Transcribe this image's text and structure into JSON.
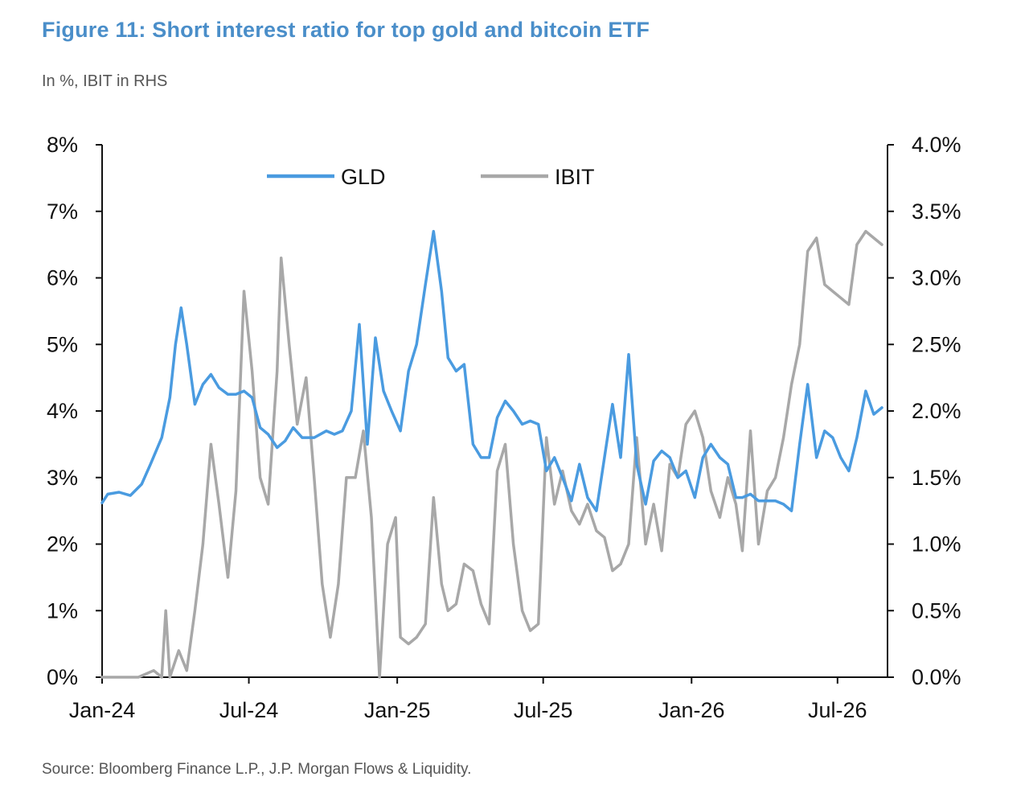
{
  "title": "Figure 11: Short interest ratio for top gold and bitcoin ETF",
  "subtitle": "In %, IBIT in RHS",
  "source": "Source: Bloomberg Finance L.P., J.P. Morgan Flows & Liquidity.",
  "chart_data": {
    "type": "line",
    "x_tick_labels": [
      "Jan-24",
      "Jul-24",
      "Jan-25",
      "Jul-25",
      "Jan-26",
      "Jul-26"
    ],
    "x_tick_dates": [
      "2024-01",
      "2024-07",
      "2025-01",
      "2025-07",
      "2026-01",
      "2026-07"
    ],
    "xlim": [
      "2024-01",
      "2026-09"
    ],
    "ylim_left": [
      0,
      8
    ],
    "ylim_right": [
      0,
      4
    ],
    "y_left_tick_labels": [
      "0%",
      "1%",
      "2%",
      "3%",
      "4%",
      "5%",
      "6%",
      "7%",
      "8%"
    ],
    "y_right_tick_labels": [
      "0.0%",
      "0.5%",
      "1.0%",
      "1.5%",
      "2.0%",
      "2.5%",
      "3.0%",
      "3.5%",
      "4.0%"
    ],
    "legend_placement": "top-center",
    "grid": false,
    "series": [
      {
        "name": "GLD",
        "axis": "left",
        "color": "#4a9be0",
        "points": [
          [
            "2024-01-01",
            2.62
          ],
          [
            "2024-01-08",
            2.75
          ],
          [
            "2024-01-22",
            2.78
          ],
          [
            "2024-02-05",
            2.73
          ],
          [
            "2024-02-19",
            2.9
          ],
          [
            "2024-03-01",
            3.2
          ],
          [
            "2024-03-15",
            3.6
          ],
          [
            "2024-03-25",
            4.2
          ],
          [
            "2024-04-01",
            5.0
          ],
          [
            "2024-04-08",
            5.55
          ],
          [
            "2024-04-15",
            5.0
          ],
          [
            "2024-04-25",
            4.1
          ],
          [
            "2024-05-05",
            4.4
          ],
          [
            "2024-05-15",
            4.55
          ],
          [
            "2024-05-25",
            4.35
          ],
          [
            "2024-06-05",
            4.25
          ],
          [
            "2024-06-15",
            4.25
          ],
          [
            "2024-06-25",
            4.3
          ],
          [
            "2024-07-05",
            4.2
          ],
          [
            "2024-07-15",
            3.75
          ],
          [
            "2024-07-25",
            3.65
          ],
          [
            "2024-08-05",
            3.45
          ],
          [
            "2024-08-15",
            3.55
          ],
          [
            "2024-08-25",
            3.75
          ],
          [
            "2024-09-05",
            3.6
          ],
          [
            "2024-09-20",
            3.6
          ],
          [
            "2024-10-05",
            3.7
          ],
          [
            "2024-10-15",
            3.65
          ],
          [
            "2024-10-25",
            3.7
          ],
          [
            "2024-11-05",
            4.0
          ],
          [
            "2024-11-15",
            5.3
          ],
          [
            "2024-11-25",
            3.5
          ],
          [
            "2024-12-05",
            5.1
          ],
          [
            "2024-12-15",
            4.3
          ],
          [
            "2024-12-25",
            4.0
          ],
          [
            "2025-01-05",
            3.7
          ],
          [
            "2025-01-15",
            4.6
          ],
          [
            "2025-01-25",
            5.0
          ],
          [
            "2025-02-05",
            5.9
          ],
          [
            "2025-02-15",
            6.7
          ],
          [
            "2025-02-25",
            5.8
          ],
          [
            "2025-03-05",
            4.8
          ],
          [
            "2025-03-15",
            4.6
          ],
          [
            "2025-03-25",
            4.7
          ],
          [
            "2025-04-05",
            3.5
          ],
          [
            "2025-04-15",
            3.3
          ],
          [
            "2025-04-25",
            3.3
          ],
          [
            "2025-05-05",
            3.9
          ],
          [
            "2025-05-15",
            4.15
          ],
          [
            "2025-05-25",
            4.0
          ],
          [
            "2025-06-05",
            3.8
          ],
          [
            "2025-06-15",
            3.85
          ],
          [
            "2025-06-25",
            3.8
          ],
          [
            "2025-07-05",
            3.1
          ],
          [
            "2025-07-15",
            3.3
          ],
          [
            "2025-07-25",
            3.0
          ],
          [
            "2025-08-05",
            2.65
          ],
          [
            "2025-08-15",
            3.2
          ],
          [
            "2025-08-25",
            2.7
          ],
          [
            "2025-09-05",
            2.5
          ],
          [
            "2025-09-15",
            3.3
          ],
          [
            "2025-09-25",
            4.1
          ],
          [
            "2025-10-05",
            3.3
          ],
          [
            "2025-10-15",
            4.85
          ],
          [
            "2025-10-25",
            3.2
          ],
          [
            "2025-11-05",
            2.6
          ],
          [
            "2025-11-15",
            3.25
          ],
          [
            "2025-11-25",
            3.4
          ],
          [
            "2025-12-05",
            3.3
          ],
          [
            "2025-12-15",
            3.0
          ],
          [
            "2025-12-25",
            3.1
          ],
          [
            "2026-01-05",
            2.7
          ],
          [
            "2026-01-15",
            3.3
          ],
          [
            "2026-01-25",
            3.5
          ],
          [
            "2026-02-05",
            3.3
          ],
          [
            "2026-02-15",
            3.2
          ],
          [
            "2026-02-25",
            2.7
          ],
          [
            "2026-03-05",
            2.7
          ],
          [
            "2026-03-15",
            2.75
          ],
          [
            "2026-03-25",
            2.65
          ],
          [
            "2026-04-05",
            2.65
          ],
          [
            "2026-04-15",
            2.65
          ],
          [
            "2026-04-25",
            2.6
          ],
          [
            "2026-05-05",
            2.5
          ],
          [
            "2026-05-15",
            3.5
          ],
          [
            "2026-05-25",
            4.4
          ],
          [
            "2026-06-05",
            3.3
          ],
          [
            "2026-06-15",
            3.7
          ],
          [
            "2026-06-25",
            3.6
          ],
          [
            "2026-07-05",
            3.3
          ],
          [
            "2026-07-15",
            3.1
          ],
          [
            "2026-07-25",
            3.6
          ],
          [
            "2026-08-05",
            4.3
          ],
          [
            "2026-08-15",
            3.95
          ],
          [
            "2026-08-25",
            4.05
          ]
        ]
      },
      {
        "name": "IBIT",
        "axis": "right",
        "color": "#a8a8a8",
        "points": [
          [
            "2024-01-01",
            0.0
          ],
          [
            "2024-02-15",
            0.0
          ],
          [
            "2024-03-05",
            0.05
          ],
          [
            "2024-03-15",
            0.0
          ],
          [
            "2024-03-20",
            0.5
          ],
          [
            "2024-03-25",
            0.0
          ],
          [
            "2024-04-05",
            0.2
          ],
          [
            "2024-04-15",
            0.05
          ],
          [
            "2024-04-25",
            0.5
          ],
          [
            "2024-05-05",
            1.0
          ],
          [
            "2024-05-15",
            1.75
          ],
          [
            "2024-05-25",
            1.3
          ],
          [
            "2024-06-05",
            0.75
          ],
          [
            "2024-06-15",
            1.4
          ],
          [
            "2024-06-25",
            2.9
          ],
          [
            "2024-07-05",
            2.3
          ],
          [
            "2024-07-15",
            1.5
          ],
          [
            "2024-07-25",
            1.3
          ],
          [
            "2024-08-05",
            2.3
          ],
          [
            "2024-08-10",
            3.15
          ],
          [
            "2024-08-20",
            2.5
          ],
          [
            "2024-08-30",
            1.9
          ],
          [
            "2024-09-10",
            2.25
          ],
          [
            "2024-09-20",
            1.5
          ],
          [
            "2024-09-30",
            0.7
          ],
          [
            "2024-10-10",
            0.3
          ],
          [
            "2024-10-20",
            0.7
          ],
          [
            "2024-10-30",
            1.5
          ],
          [
            "2024-11-10",
            1.5
          ],
          [
            "2024-11-20",
            1.85
          ],
          [
            "2024-11-30",
            1.2
          ],
          [
            "2024-12-10",
            0.0
          ],
          [
            "2024-12-20",
            1.0
          ],
          [
            "2024-12-30",
            1.2
          ],
          [
            "2025-01-05",
            0.3
          ],
          [
            "2025-01-15",
            0.25
          ],
          [
            "2025-01-25",
            0.3
          ],
          [
            "2025-02-05",
            0.4
          ],
          [
            "2025-02-15",
            1.35
          ],
          [
            "2025-02-25",
            0.7
          ],
          [
            "2025-03-05",
            0.5
          ],
          [
            "2025-03-15",
            0.55
          ],
          [
            "2025-03-25",
            0.85
          ],
          [
            "2025-04-05",
            0.8
          ],
          [
            "2025-04-15",
            0.55
          ],
          [
            "2025-04-25",
            0.4
          ],
          [
            "2025-05-05",
            1.55
          ],
          [
            "2025-05-15",
            1.75
          ],
          [
            "2025-05-25",
            1.0
          ],
          [
            "2025-06-05",
            0.5
          ],
          [
            "2025-06-15",
            0.35
          ],
          [
            "2025-06-25",
            0.4
          ],
          [
            "2025-07-05",
            1.8
          ],
          [
            "2025-07-15",
            1.3
          ],
          [
            "2025-07-25",
            1.55
          ],
          [
            "2025-08-05",
            1.25
          ],
          [
            "2025-08-15",
            1.15
          ],
          [
            "2025-08-25",
            1.3
          ],
          [
            "2025-09-05",
            1.1
          ],
          [
            "2025-09-15",
            1.05
          ],
          [
            "2025-09-25",
            0.8
          ],
          [
            "2025-10-05",
            0.85
          ],
          [
            "2025-10-15",
            1.0
          ],
          [
            "2025-10-25",
            1.8
          ],
          [
            "2025-11-05",
            1.0
          ],
          [
            "2025-11-15",
            1.3
          ],
          [
            "2025-11-25",
            0.95
          ],
          [
            "2025-12-05",
            1.6
          ],
          [
            "2025-12-15",
            1.5
          ],
          [
            "2025-12-25",
            1.9
          ],
          [
            "2026-01-05",
            2.0
          ],
          [
            "2026-01-15",
            1.8
          ],
          [
            "2026-01-25",
            1.4
          ],
          [
            "2026-02-05",
            1.2
          ],
          [
            "2026-02-15",
            1.5
          ],
          [
            "2026-02-25",
            1.3
          ],
          [
            "2026-03-05",
            0.95
          ],
          [
            "2026-03-15",
            1.85
          ],
          [
            "2026-03-25",
            1.0
          ],
          [
            "2026-04-05",
            1.4
          ],
          [
            "2026-04-15",
            1.5
          ],
          [
            "2026-04-25",
            1.8
          ],
          [
            "2026-05-05",
            2.2
          ],
          [
            "2026-05-15",
            2.5
          ],
          [
            "2026-05-25",
            3.2
          ],
          [
            "2026-06-05",
            3.3
          ],
          [
            "2026-06-15",
            2.95
          ],
          [
            "2026-06-25",
            2.9
          ],
          [
            "2026-07-05",
            2.85
          ],
          [
            "2026-07-15",
            2.8
          ],
          [
            "2026-07-25",
            3.25
          ],
          [
            "2026-08-05",
            3.35
          ],
          [
            "2026-08-15",
            3.3
          ],
          [
            "2026-08-25",
            3.25
          ]
        ]
      }
    ]
  }
}
